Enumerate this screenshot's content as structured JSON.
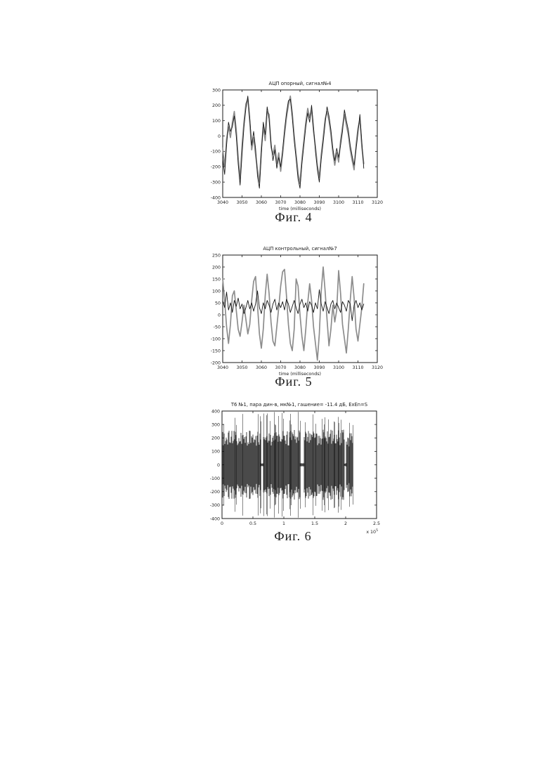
{
  "page": {
    "background": "#ffffff",
    "border_color": "#ababab"
  },
  "chart_data": [
    {
      "type": "line",
      "figure_label": "Фиг. 4",
      "title": "АЦП опорный, сигнал№4",
      "xlabel": "time (milliseconds)",
      "xlim": [
        3040,
        3120
      ],
      "ylim": [
        -400,
        300
      ],
      "x_ticks": [
        3040,
        3050,
        3060,
        3070,
        3080,
        3090,
        3100,
        3110,
        3120
      ],
      "y_ticks": [
        -400,
        -300,
        -200,
        -100,
        0,
        100,
        200,
        300
      ],
      "grid": false,
      "legend": null,
      "axis_color": "#1a1a1a",
      "series": [
        {
          "name": "reference-signal-gray",
          "color": "#8c8c8c",
          "width": 1.7,
          "x_start": 3040,
          "x_step": 1,
          "values": [
            -80,
            -200,
            -20,
            60,
            -10,
            90,
            160,
            40,
            -140,
            -280,
            -60,
            90,
            210,
            240,
            90,
            -90,
            -10,
            -120,
            -220,
            -300,
            -80,
            60,
            -30,
            160,
            140,
            -70,
            -120,
            -60,
            -180,
            -110,
            -230,
            -120,
            10,
            120,
            200,
            260,
            150,
            0,
            -120,
            -240,
            -310,
            -150,
            -30,
            90,
            180,
            120,
            170,
            30,
            -70,
            -190,
            -270,
            -120,
            -10,
            110,
            160,
            100,
            10,
            -110,
            -190,
            -110,
            -170,
            -30,
            60,
            140,
            70,
            10,
            -90,
            -160,
            -220,
            -60,
            50,
            110,
            -70,
            -180
          ]
        },
        {
          "name": "reference-signal-black",
          "color": "#161616",
          "width": 0.9,
          "x_start": 3040,
          "x_step": 1,
          "values": [
            -150,
            -250,
            -60,
            90,
            30,
            60,
            130,
            0,
            -180,
            -320,
            -120,
            60,
            180,
            260,
            120,
            -60,
            30,
            -80,
            -260,
            -340,
            -120,
            90,
            10,
            190,
            110,
            -40,
            -160,
            -90,
            -210,
            -140,
            -200,
            -90,
            40,
            150,
            230,
            240,
            120,
            -30,
            -150,
            -280,
            -340,
            -180,
            -60,
            60,
            150,
            90,
            200,
            60,
            -100,
            -220,
            -300,
            -150,
            -40,
            80,
            190,
            130,
            40,
            -80,
            -160,
            -80,
            -140,
            -60,
            30,
            170,
            100,
            40,
            -60,
            -130,
            -190,
            -90,
            20,
            140,
            -40,
            -210
          ]
        }
      ]
    },
    {
      "type": "line",
      "figure_label": "Фиг. 5",
      "title": "АЦП контрольный, сигнал№7",
      "xlabel": "time (milliseconds)",
      "xlim": [
        3040,
        3120
      ],
      "ylim": [
        -200,
        250
      ],
      "x_ticks": [
        3040,
        3050,
        3060,
        3070,
        3080,
        3090,
        3100,
        3110,
        3120
      ],
      "y_ticks": [
        -200,
        -150,
        -100,
        -50,
        0,
        50,
        100,
        150,
        200,
        250
      ],
      "grid": false,
      "legend": null,
      "axis_color": "#1a1a1a",
      "series": [
        {
          "name": "control-signal-gray",
          "color": "#8c8c8c",
          "width": 1.7,
          "x_start": 3040,
          "x_step": 1,
          "values": [
            150,
            60,
            -50,
            -120,
            -40,
            80,
            100,
            20,
            -60,
            -90,
            -30,
            40,
            -20,
            -80,
            -40,
            60,
            140,
            160,
            40,
            -80,
            -140,
            -60,
            80,
            170,
            90,
            -30,
            -110,
            -130,
            -50,
            30,
            120,
            180,
            190,
            80,
            -40,
            -120,
            -150,
            -60,
            150,
            120,
            0,
            -90,
            -150,
            -60,
            50,
            130,
            60,
            -50,
            -120,
            -190,
            -80,
            100,
            200,
            100,
            -20,
            -130,
            -60,
            40,
            -30,
            20,
            185,
            90,
            -40,
            -100,
            -160,
            -60,
            60,
            160,
            70,
            -60,
            -110,
            -40,
            30,
            130
          ]
        },
        {
          "name": "control-signal-black",
          "color": "#161616",
          "width": 0.9,
          "x_start": 3040,
          "x_step": 1,
          "values": [
            60,
            30,
            95,
            20,
            50,
            10,
            60,
            35,
            70,
            25,
            45,
            5,
            30,
            60,
            25,
            50,
            15,
            45,
            100,
            30,
            5,
            50,
            25,
            60,
            40,
            10,
            45,
            65,
            20,
            50,
            30,
            55,
            20,
            65,
            45,
            10,
            35,
            60,
            30,
            5,
            45,
            65,
            30,
            50,
            15,
            55,
            40,
            10,
            50,
            25,
            105,
            45,
            15,
            55,
            30,
            5,
            45,
            60,
            25,
            50,
            30,
            10,
            55,
            40,
            15,
            60,
            45,
            -25,
            40,
            60,
            30,
            50,
            20,
            45
          ]
        }
      ]
    },
    {
      "type": "noise",
      "figure_label": "Фиг. 6",
      "title": "Т6 №1, пара дин-в, мк№1, гашение= -11.4 дБ, ExEn=S",
      "xlabel": "",
      "x_multiplier_label": "x 10",
      "x_multiplier_exp": "5",
      "xlim": [
        0,
        250000
      ],
      "ylim": [
        -400,
        400
      ],
      "x_ticks": [
        0,
        50000,
        100000,
        150000,
        200000,
        250000
      ],
      "x_tick_labels": [
        "0",
        "0.5",
        "1",
        "1.5",
        "2",
        "2.5"
      ],
      "y_ticks": [
        -400,
        -300,
        -200,
        -100,
        0,
        100,
        200,
        300,
        400
      ],
      "grid": false,
      "legend": null,
      "axis_color": "#1a1a1a",
      "noise_color": "#101010",
      "seed": 1234,
      "gap_amplitude": 14,
      "bursts": [
        {
          "x0": 500,
          "x1": 62500,
          "core": 255,
          "spike": 385
        },
        {
          "x0": 67500,
          "x1": 126500,
          "core": 260,
          "spike": 395
        },
        {
          "x0": 133000,
          "x1": 197500,
          "core": 265,
          "spike": 400
        },
        {
          "x0": 201500,
          "x1": 211500,
          "core": 245,
          "spike": 330
        }
      ]
    }
  ]
}
